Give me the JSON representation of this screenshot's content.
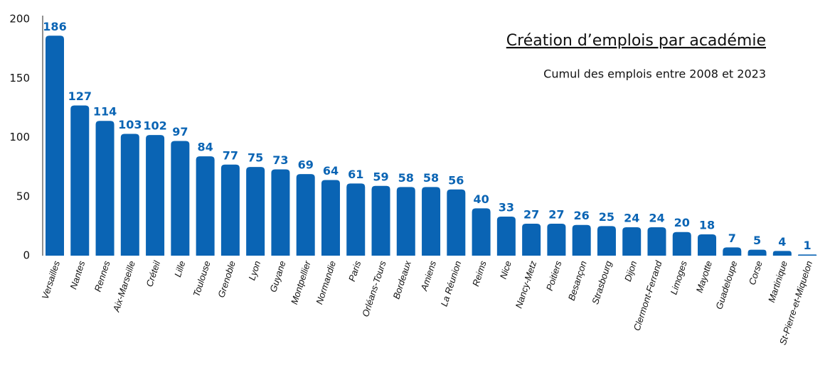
{
  "chart_data": {
    "type": "bar",
    "title": "Création d’emplois par académie",
    "subtitle": "Cumul des emplois entre 2008 et 2023",
    "categories": [
      "Versailles",
      "Nantes",
      "Rennes",
      "Aix-Marseille",
      "Créteil",
      "Lille",
      "Toulouse",
      "Grenoble",
      "Lyon",
      "Guyane",
      "Montpellier",
      "Normandie",
      "Paris",
      "Orléans-Tours",
      "Bordeaux",
      "Amiens",
      "La Réunion",
      "Reims",
      "Nice",
      "Nancy-Metz",
      "Poitiers",
      "Besançon",
      "Strasbourg",
      "Dijon",
      "Clermont-Ferrand",
      "Limoges",
      "Mayotte",
      "Guadeloupe",
      "Corse",
      "Martinique",
      "St-Pierre-et-Miquelon"
    ],
    "values": [
      186,
      127,
      114,
      103,
      102,
      97,
      84,
      77,
      75,
      73,
      69,
      64,
      61,
      59,
      58,
      58,
      56,
      40,
      33,
      27,
      27,
      26,
      25,
      24,
      24,
      20,
      18,
      7,
      5,
      4,
      1
    ],
    "color": "#0a64b4",
    "ylim": [
      0,
      200
    ],
    "yticks": [
      0,
      50,
      100,
      150,
      200
    ],
    "grid": false
  }
}
